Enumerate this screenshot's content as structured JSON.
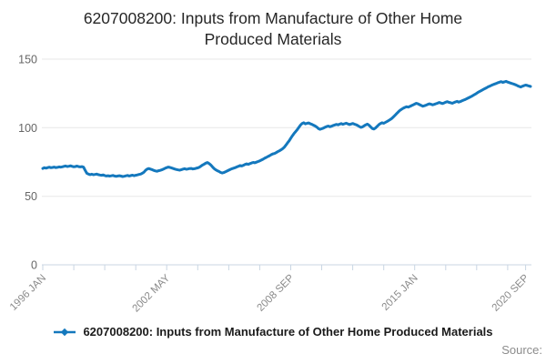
{
  "header": {
    "title": "6207008200: Inputs from Manufacture of Other Home Produced Materials"
  },
  "legend": {
    "label": "6207008200: Inputs from Manufacture of Other Home Produced Materials"
  },
  "footer": {
    "source_label": "Source:"
  },
  "chart_data": {
    "type": "line",
    "title": "6207008200: Inputs from Manufacture of Other Home Produced Materials",
    "xlabel": "",
    "ylabel": "",
    "ylim": [
      0,
      150
    ],
    "yticks": [
      0,
      50,
      100,
      150
    ],
    "grid": "horizontal",
    "legend_position": "bottom",
    "x_unit": "month",
    "x_start": "1996 JAN",
    "xticks": {
      "major_month_indices": [
        0,
        76,
        152,
        228,
        296
      ],
      "major_labels": [
        "1996 JAN",
        "2002 MAY",
        "2008 SEP",
        "2015 JAN",
        "2020 SEP"
      ],
      "minor_step_months": 19
    },
    "colors": {
      "line": "#1478bd",
      "grid": "#e7e7e7",
      "axis": "#c9d6e3",
      "ytick_label": "#666666",
      "xtick_label": "#8a8a8a",
      "title": "#262626",
      "legend_text": "#1a1a1a",
      "source": "#8c8c8c"
    },
    "series": [
      {
        "name": "6207008200: Inputs from Manufacture of Other Home Produced Materials",
        "color": "#1478bd",
        "values": [
          70.3,
          70.8,
          70.5,
          70.9,
          71.2,
          70.8,
          71.0,
          71.3,
          70.9,
          71.1,
          71.4,
          71.2,
          71.5,
          71.8,
          72.1,
          71.7,
          71.9,
          72.2,
          71.8,
          71.5,
          71.7,
          72.0,
          71.6,
          71.4,
          71.6,
          71.2,
          68.9,
          66.8,
          66.2,
          65.8,
          66.1,
          65.7,
          65.9,
          66.2,
          65.8,
          65.5,
          65.3,
          65.6,
          65.1,
          64.8,
          65.0,
          64.7,
          64.9,
          65.2,
          64.8,
          64.5,
          64.8,
          65.0,
          64.7,
          64.4,
          64.6,
          64.9,
          65.2,
          64.8,
          65.1,
          65.4,
          65.0,
          65.3,
          65.6,
          65.9,
          66.2,
          66.8,
          67.5,
          68.9,
          69.8,
          70.2,
          69.8,
          69.4,
          68.9,
          68.5,
          68.2,
          68.6,
          68.9,
          69.3,
          69.8,
          70.4,
          70.9,
          71.3,
          71.0,
          70.6,
          70.2,
          69.8,
          69.5,
          69.2,
          69.0,
          69.4,
          69.8,
          70.1,
          69.7,
          69.9,
          70.2,
          70.3,
          69.9,
          70.1,
          70.4,
          70.7,
          71.2,
          72.0,
          72.8,
          73.5,
          74.2,
          74.6,
          73.9,
          72.8,
          71.5,
          70.2,
          69.3,
          68.6,
          68.1,
          67.4,
          67.0,
          67.3,
          67.8,
          68.4,
          69.0,
          69.6,
          70.1,
          70.5,
          70.9,
          71.4,
          71.9,
          72.4,
          72.1,
          72.6,
          73.2,
          73.6,
          73.3,
          73.8,
          74.3,
          74.7,
          74.4,
          74.9,
          75.3,
          75.8,
          76.4,
          77.0,
          77.7,
          78.3,
          79.0,
          79.6,
          80.3,
          80.9,
          81.2,
          81.8,
          82.5,
          83.1,
          83.8,
          84.6,
          85.7,
          87.2,
          88.9,
          90.4,
          92.3,
          94.1,
          95.8,
          97.2,
          98.6,
          100.2,
          101.9,
          103.1,
          103.6,
          102.8,
          103.2,
          103.5,
          102.9,
          102.4,
          101.8,
          101.2,
          100.4,
          99.3,
          98.8,
          99.2,
          99.7,
          100.3,
          100.8,
          101.2,
          100.7,
          101.1,
          101.6,
          102.0,
          102.4,
          102.1,
          102.6,
          103.0,
          102.5,
          102.9,
          103.3,
          102.8,
          102.3,
          102.7,
          103.1,
          102.6,
          102.2,
          101.6,
          100.9,
          100.2,
          100.6,
          101.4,
          102.1,
          102.6,
          101.8,
          100.6,
          99.4,
          99.0,
          99.8,
          101.0,
          102.2,
          103.1,
          103.6,
          103.2,
          103.9,
          104.5,
          105.2,
          105.9,
          106.8,
          107.9,
          109.1,
          110.4,
          111.6,
          112.7,
          113.5,
          114.2,
          114.8,
          115.3,
          115.0,
          115.5,
          116.1,
          116.6,
          117.2,
          117.8,
          117.4,
          116.8,
          116.2,
          115.7,
          116.0,
          116.5,
          117.0,
          117.4,
          117.1,
          116.7,
          117.0,
          117.5,
          117.9,
          118.4,
          118.0,
          117.6,
          118.1,
          118.6,
          119.0,
          118.5,
          118.2,
          117.8,
          118.3,
          118.8,
          119.2,
          118.7,
          119.1,
          119.6,
          120.1,
          120.6,
          121.2,
          121.8,
          122.4,
          123.0,
          123.7,
          124.4,
          125.1,
          125.9,
          126.6,
          127.2,
          127.9,
          128.5,
          129.1,
          129.8,
          130.3,
          130.9,
          131.4,
          131.9,
          132.3,
          132.8,
          133.2,
          133.6,
          133.1,
          133.4,
          133.8,
          133.3,
          132.9,
          132.5,
          132.1,
          131.7,
          131.2,
          130.6,
          130.1,
          129.7,
          130.2,
          130.7,
          131.1,
          130.8,
          130.4,
          130.1
        ]
      }
    ]
  }
}
